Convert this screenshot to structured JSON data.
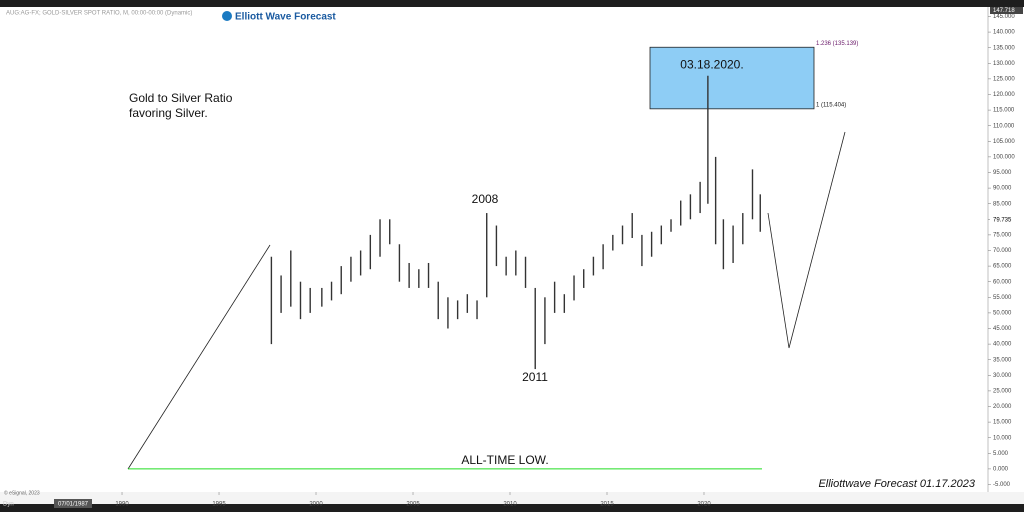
{
  "chart_data": {
    "type": "range-bar",
    "header": "AUG:AG-FX; GOLD-SILVER SPOT RATIO, M, 00:00-00:00 (Dynamic)",
    "logo": "Elliott Wave Forecast",
    "annotations": {
      "note_line1": "Gold to Silver Ratio",
      "note_line2": "favoring Silver.",
      "peak_2008": "2008",
      "low_2011": "2011",
      "peak_2020": "03.18.2020.",
      "all_time_low": "ALL-TIME LOW.",
      "footer": "Elliottwave Forecast  01.17.2023",
      "copyright": "© eSignal, 2023",
      "mode": "Dyn",
      "cursor_date": "07/01/1987"
    },
    "fib_levels": [
      {
        "value": 135.139,
        "label": "1.236 (135.139)"
      },
      {
        "value": 115.404,
        "label": "1 (115.404)"
      }
    ],
    "all_time_low_level": 0,
    "current_price": 79.735,
    "color": "#333333",
    "x": [
      1997.7,
      1998.2,
      1998.7,
      1999.2,
      1999.7,
      2000.3,
      2000.8,
      2001.3,
      2001.8,
      2002.3,
      2002.8,
      2003.3,
      2003.8,
      2004.3,
      2004.8,
      2005.3,
      2005.8,
      2006.3,
      2006.8,
      2007.3,
      2007.8,
      2008.3,
      2008.8,
      2009.3,
      2009.8,
      2010.3,
      2010.8,
      2011.3,
      2011.8,
      2012.3,
      2012.8,
      2013.3,
      2013.8,
      2014.3,
      2014.8,
      2015.3,
      2015.8,
      2016.3,
      2016.8,
      2017.3,
      2017.8,
      2018.3,
      2018.8,
      2019.3,
      2019.8,
      2020.2,
      2020.6,
      2021.0,
      2021.5,
      2022.0,
      2022.5,
      2022.9
    ],
    "high": [
      68,
      62,
      70,
      60,
      58,
      58,
      60,
      65,
      68,
      70,
      75,
      80,
      80,
      72,
      66,
      64,
      66,
      60,
      55,
      54,
      56,
      54,
      82,
      78,
      68,
      70,
      68,
      58,
      55,
      60,
      56,
      62,
      64,
      68,
      72,
      75,
      78,
      82,
      75,
      76,
      78,
      80,
      86,
      88,
      92,
      126,
      100,
      80,
      78,
      82,
      96,
      88
    ],
    "low": [
      40,
      50,
      52,
      48,
      50,
      52,
      54,
      56,
      60,
      62,
      64,
      68,
      72,
      60,
      58,
      58,
      58,
      48,
      45,
      48,
      50,
      48,
      55,
      65,
      62,
      62,
      58,
      32,
      40,
      50,
      50,
      54,
      58,
      62,
      64,
      70,
      72,
      74,
      65,
      68,
      72,
      76,
      78,
      80,
      82,
      85,
      72,
      64,
      66,
      72,
      80,
      76
    ],
    "xlim": [
      1983.71,
      2034.64
    ],
    "xticks": [
      1990,
      1995,
      2000,
      2005,
      2010,
      2015,
      2020
    ],
    "ylim": [
      -7.4,
      147.718
    ],
    "yticks": [
      {
        "value": -5,
        "label": "-5.000"
      },
      {
        "value": 0,
        "label": "0.000"
      },
      {
        "value": 5,
        "label": "5.000"
      },
      {
        "value": 10,
        "label": "10.000"
      },
      {
        "value": 15,
        "label": "15.000"
      },
      {
        "value": 20,
        "label": "20.000"
      },
      {
        "value": 25,
        "label": "25.000"
      },
      {
        "value": 30,
        "label": "30.000"
      },
      {
        "value": 35,
        "label": "35.000"
      },
      {
        "value": 40,
        "label": "40.000"
      },
      {
        "value": 45,
        "label": "45.000"
      },
      {
        "value": 50,
        "label": "50.000"
      },
      {
        "value": 55,
        "label": "55.000"
      },
      {
        "value": 60,
        "label": "60.000"
      },
      {
        "value": 65,
        "label": "65.000"
      },
      {
        "value": 70,
        "label": "70.000"
      },
      {
        "value": 75,
        "label": "75.000"
      },
      {
        "value": 80,
        "label": "80.000"
      },
      {
        "value": 85,
        "label": "85.000"
      },
      {
        "value": 90,
        "label": "90.000"
      },
      {
        "value": 95,
        "label": "95.000"
      },
      {
        "value": 100,
        "label": "100.000"
      },
      {
        "value": 105,
        "label": "105.000"
      },
      {
        "value": 110,
        "label": "110.000"
      },
      {
        "value": 115,
        "label": "115.000"
      },
      {
        "value": 120,
        "label": "120.000"
      },
      {
        "value": 125,
        "label": "125.000"
      },
      {
        "value": 130,
        "label": "130.000"
      },
      {
        "value": 135,
        "label": "135.000"
      },
      {
        "value": 140,
        "label": "140.000"
      },
      {
        "value": 145,
        "label": "145.000"
      }
    ]
  }
}
